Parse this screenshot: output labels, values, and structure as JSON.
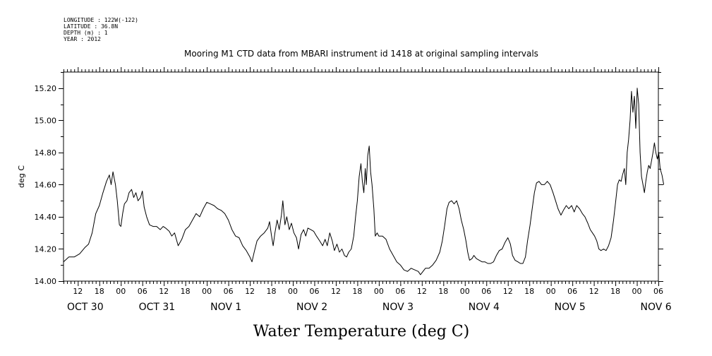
{
  "header": {
    "longitude": "LONGITUDE : 122W(-122)",
    "latitude": "LATITUDE : 36.8N",
    "depth": "DEPTH (m) : 1",
    "year": "YEAR : 2012"
  },
  "chart_data": {
    "type": "line",
    "title": "Mooring M1 CTD data from MBARI instrument id 1418 at original sampling intervals",
    "xlabel": "Water Temperature (deg C)",
    "ylabel": "deg C",
    "ylim": [
      14.0,
      15.3
    ],
    "xlim_hours": [
      -10,
      156
    ],
    "yticks": [
      "14.00",
      "14.20",
      "14.40",
      "14.60",
      "14.80",
      "15.00",
      "15.20"
    ],
    "hour_ticks": [
      {
        "h": -6,
        "label": "12"
      },
      {
        "h": 0,
        "label": "18"
      },
      {
        "h": 6,
        "label": "00"
      },
      {
        "h": 12,
        "label": "06"
      },
      {
        "h": 18,
        "label": "12"
      },
      {
        "h": 24,
        "label": "18"
      },
      {
        "h": 30,
        "label": "00"
      },
      {
        "h": 36,
        "label": "06"
      },
      {
        "h": 42,
        "label": "12"
      },
      {
        "h": 48,
        "label": "18"
      },
      {
        "h": 54,
        "label": "00"
      },
      {
        "h": 60,
        "label": "06"
      },
      {
        "h": 66,
        "label": "12"
      },
      {
        "h": 72,
        "label": "18"
      },
      {
        "h": 78,
        "label": "00"
      },
      {
        "h": 84,
        "label": "06"
      },
      {
        "h": 90,
        "label": "12"
      },
      {
        "h": 96,
        "label": "18"
      },
      {
        "h": 102,
        "label": "00"
      },
      {
        "h": 108,
        "label": "06"
      },
      {
        "h": 114,
        "label": "12"
      },
      {
        "h": 120,
        "label": "18"
      },
      {
        "h": 126,
        "label": "00"
      },
      {
        "h": 132,
        "label": "06"
      },
      {
        "h": 138,
        "label": "12"
      },
      {
        "h": 144,
        "label": "18"
      },
      {
        "h": 150,
        "label": "00"
      },
      {
        "h": 156,
        "label": "06"
      }
    ],
    "day_labels": [
      {
        "h": -10,
        "label": "OCT 30"
      },
      {
        "h": 10,
        "label": "OCT 31"
      },
      {
        "h": 30,
        "label": "NOV  1"
      },
      {
        "h": 54,
        "label": "NOV  2"
      },
      {
        "h": 78,
        "label": "NOV  3"
      },
      {
        "h": 102,
        "label": "NOV  4"
      },
      {
        "h": 126,
        "label": "NOV  5"
      },
      {
        "h": 150,
        "label": "NOV  6"
      }
    ],
    "series": [
      {
        "points": [
          [
            -10,
            14.12
          ],
          [
            -8.5,
            14.15
          ],
          [
            -7,
            14.15
          ],
          [
            -5.5,
            14.17
          ],
          [
            -4,
            14.21
          ],
          [
            -3,
            14.23
          ],
          [
            -2,
            14.3
          ],
          [
            -1,
            14.42
          ],
          [
            0,
            14.47
          ],
          [
            1,
            14.55
          ],
          [
            2,
            14.62
          ],
          [
            2.8,
            14.66
          ],
          [
            3.3,
            14.6
          ],
          [
            3.8,
            14.68
          ],
          [
            4.5,
            14.6
          ],
          [
            5,
            14.5
          ],
          [
            5.6,
            14.35
          ],
          [
            6,
            14.34
          ],
          [
            6.5,
            14.42
          ],
          [
            7,
            14.48
          ],
          [
            7.7,
            14.5
          ],
          [
            8.3,
            14.55
          ],
          [
            9,
            14.57
          ],
          [
            9.6,
            14.52
          ],
          [
            10.2,
            14.55
          ],
          [
            10.8,
            14.5
          ],
          [
            11.5,
            14.52
          ],
          [
            12,
            14.56
          ],
          [
            12.5,
            14.46
          ],
          [
            13.2,
            14.4
          ],
          [
            14,
            14.35
          ],
          [
            15,
            14.34
          ],
          [
            16,
            14.34
          ],
          [
            17,
            14.32
          ],
          [
            17.8,
            14.34
          ],
          [
            18.5,
            14.33
          ],
          [
            19.5,
            14.31
          ],
          [
            20.2,
            14.28
          ],
          [
            21,
            14.3
          ],
          [
            22,
            14.22
          ],
          [
            23,
            14.26
          ],
          [
            24,
            14.32
          ],
          [
            25,
            14.34
          ],
          [
            26,
            14.38
          ],
          [
            27,
            14.42
          ],
          [
            28,
            14.4
          ],
          [
            29,
            14.45
          ],
          [
            30,
            14.49
          ],
          [
            31,
            14.48
          ],
          [
            32,
            14.47
          ],
          [
            33,
            14.45
          ],
          [
            34,
            14.44
          ],
          [
            35,
            14.42
          ],
          [
            36,
            14.38
          ],
          [
            37,
            14.32
          ],
          [
            38,
            14.28
          ],
          [
            39,
            14.27
          ],
          [
            40,
            14.22
          ],
          [
            41,
            14.19
          ],
          [
            42,
            14.15
          ],
          [
            42.6,
            14.12
          ],
          [
            43.2,
            14.18
          ],
          [
            44,
            14.25
          ],
          [
            45,
            14.28
          ],
          [
            46,
            14.3
          ],
          [
            47,
            14.33
          ],
          [
            47.5,
            14.37
          ],
          [
            48,
            14.29
          ],
          [
            48.5,
            14.22
          ],
          [
            49,
            14.3
          ],
          [
            49.6,
            14.38
          ],
          [
            50.2,
            14.32
          ],
          [
            50.8,
            14.41
          ],
          [
            51.2,
            14.5
          ],
          [
            51.8,
            14.35
          ],
          [
            52.3,
            14.4
          ],
          [
            53,
            14.32
          ],
          [
            53.6,
            14.36
          ],
          [
            54.3,
            14.3
          ],
          [
            55,
            14.27
          ],
          [
            55.6,
            14.2
          ],
          [
            56.3,
            14.29
          ],
          [
            57,
            14.32
          ],
          [
            57.6,
            14.28
          ],
          [
            58.2,
            14.33
          ],
          [
            59,
            14.32
          ],
          [
            59.8,
            14.31
          ],
          [
            60.6,
            14.28
          ],
          [
            61.5,
            14.25
          ],
          [
            62.3,
            14.22
          ],
          [
            63,
            14.26
          ],
          [
            63.6,
            14.22
          ],
          [
            64.3,
            14.3
          ],
          [
            65,
            14.25
          ],
          [
            65.6,
            14.19
          ],
          [
            66.3,
            14.23
          ],
          [
            67,
            14.18
          ],
          [
            67.7,
            14.2
          ],
          [
            68.4,
            14.16
          ],
          [
            69,
            14.15
          ],
          [
            69.6,
            14.18
          ],
          [
            70.3,
            14.2
          ],
          [
            71,
            14.28
          ],
          [
            71.5,
            14.4
          ],
          [
            72,
            14.5
          ],
          [
            72.5,
            14.65
          ],
          [
            73,
            14.73
          ],
          [
            73.4,
            14.62
          ],
          [
            73.8,
            14.55
          ],
          [
            74.2,
            14.7
          ],
          [
            74.5,
            14.6
          ],
          [
            74.9,
            14.78
          ],
          [
            75.3,
            14.84
          ],
          [
            75.7,
            14.68
          ],
          [
            76.1,
            14.6
          ],
          [
            76.6,
            14.45
          ],
          [
            77,
            14.28
          ],
          [
            77.5,
            14.3
          ],
          [
            78,
            14.28
          ],
          [
            79,
            14.28
          ],
          [
            80,
            14.26
          ],
          [
            81,
            14.2
          ],
          [
            82,
            14.16
          ],
          [
            83,
            14.12
          ],
          [
            84,
            14.1
          ],
          [
            85,
            14.07
          ],
          [
            86,
            14.06
          ],
          [
            87,
            14.08
          ],
          [
            88,
            14.07
          ],
          [
            89,
            14.06
          ],
          [
            89.6,
            14.04
          ],
          [
            90.3,
            14.06
          ],
          [
            91,
            14.08
          ],
          [
            92,
            14.08
          ],
          [
            93,
            14.1
          ],
          [
            94,
            14.13
          ],
          [
            95,
            14.18
          ],
          [
            95.7,
            14.25
          ],
          [
            96.4,
            14.35
          ],
          [
            97,
            14.45
          ],
          [
            97.6,
            14.49
          ],
          [
            98.3,
            14.5
          ],
          [
            99,
            14.48
          ],
          [
            99.7,
            14.5
          ],
          [
            100.4,
            14.45
          ],
          [
            101,
            14.38
          ],
          [
            101.7,
            14.32
          ],
          [
            102.3,
            14.25
          ],
          [
            102.8,
            14.18
          ],
          [
            103.3,
            14.13
          ],
          [
            104,
            14.14
          ],
          [
            104.5,
            14.16
          ],
          [
            105.2,
            14.14
          ],
          [
            106,
            14.13
          ],
          [
            106.8,
            14.12
          ],
          [
            107.6,
            14.12
          ],
          [
            108.4,
            14.11
          ],
          [
            109.2,
            14.11
          ],
          [
            110,
            14.12
          ],
          [
            110.8,
            14.16
          ],
          [
            111.6,
            14.19
          ],
          [
            112.4,
            14.2
          ],
          [
            113.2,
            14.24
          ],
          [
            114,
            14.27
          ],
          [
            114.7,
            14.23
          ],
          [
            115.3,
            14.16
          ],
          [
            116,
            14.13
          ],
          [
            116.8,
            14.12
          ],
          [
            117.5,
            14.11
          ],
          [
            118.2,
            14.11
          ],
          [
            118.9,
            14.15
          ],
          [
            119.5,
            14.25
          ],
          [
            120.2,
            14.35
          ],
          [
            120.8,
            14.45
          ],
          [
            121.4,
            14.55
          ],
          [
            122,
            14.61
          ],
          [
            122.7,
            14.62
          ],
          [
            123.4,
            14.6
          ],
          [
            124.2,
            14.6
          ],
          [
            125,
            14.62
          ],
          [
            125.8,
            14.6
          ],
          [
            126.6,
            14.55
          ],
          [
            127.3,
            14.5
          ],
          [
            128,
            14.45
          ],
          [
            128.8,
            14.41
          ],
          [
            129.5,
            14.44
          ],
          [
            130.3,
            14.47
          ],
          [
            131,
            14.45
          ],
          [
            131.8,
            14.47
          ],
          [
            132.5,
            14.43
          ],
          [
            133.2,
            14.47
          ],
          [
            134,
            14.45
          ],
          [
            134.8,
            14.42
          ],
          [
            135.5,
            14.4
          ],
          [
            136.3,
            14.36
          ],
          [
            137,
            14.32
          ],
          [
            137.6,
            14.3
          ],
          [
            138.2,
            14.28
          ],
          [
            138.8,
            14.25
          ],
          [
            139.4,
            14.2
          ],
          [
            140,
            14.19
          ],
          [
            140.7,
            14.2
          ],
          [
            141.4,
            14.19
          ],
          [
            142.1,
            14.22
          ],
          [
            142.8,
            14.27
          ],
          [
            143.5,
            14.38
          ],
          [
            144.1,
            14.5
          ],
          [
            144.6,
            14.6
          ],
          [
            145.1,
            14.63
          ],
          [
            145.6,
            14.62
          ],
          [
            146,
            14.66
          ],
          [
            146.5,
            14.7
          ],
          [
            146.9,
            14.6
          ],
          [
            147.3,
            14.8
          ],
          [
            147.7,
            14.88
          ],
          [
            148.1,
            15.0
          ],
          [
            148.5,
            15.18
          ],
          [
            148.9,
            15.05
          ],
          [
            149.3,
            15.15
          ],
          [
            149.7,
            14.95
          ],
          [
            150.1,
            15.2
          ],
          [
            150.5,
            15.1
          ],
          [
            150.9,
            14.8
          ],
          [
            151.3,
            14.65
          ],
          [
            151.7,
            14.6
          ],
          [
            152.1,
            14.55
          ],
          [
            152.5,
            14.62
          ],
          [
            152.9,
            14.68
          ],
          [
            153.3,
            14.72
          ],
          [
            153.7,
            14.7
          ],
          [
            154.1,
            14.75
          ],
          [
            154.5,
            14.8
          ],
          [
            154.9,
            14.86
          ],
          [
            155.3,
            14.8
          ],
          [
            155.7,
            14.76
          ],
          [
            156.1,
            14.8
          ],
          [
            156.5,
            14.7
          ],
          [
            157,
            14.66
          ],
          [
            157.5,
            14.6
          ]
        ]
      }
    ]
  }
}
